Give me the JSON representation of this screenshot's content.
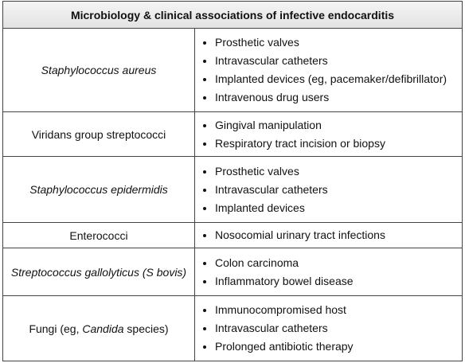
{
  "table": {
    "title": "Microbiology & clinical associations of infective endocarditis",
    "rows": [
      {
        "organism": [
          {
            "text": "Staphylococcus aureus",
            "italic": true
          }
        ],
        "associations": [
          "Prosthetic valves",
          "Intravascular catheters",
          "Implanted devices (eg, pacemaker/defibrillator)",
          "Intravenous drug users"
        ]
      },
      {
        "organism": [
          {
            "text": "Viridans group streptococci",
            "italic": false
          }
        ],
        "associations": [
          "Gingival manipulation",
          "Respiratory tract incision or biopsy"
        ]
      },
      {
        "organism": [
          {
            "text": "Staphylococcus epidermidis",
            "italic": true
          }
        ],
        "associations": [
          "Prosthetic valves",
          "Intravascular catheters",
          "Implanted devices"
        ]
      },
      {
        "organism": [
          {
            "text": "Enterococci",
            "italic": false
          }
        ],
        "associations": [
          "Nosocomial urinary tract infections"
        ]
      },
      {
        "organism": [
          {
            "text": "Streptococcus gallolyticus (S bovis)",
            "italic": true
          }
        ],
        "associations": [
          "Colon carcinoma",
          "Inflammatory bowel disease"
        ]
      },
      {
        "organism": [
          {
            "text": "Fungi (eg, ",
            "italic": false
          },
          {
            "text": "Candida",
            "italic": true
          },
          {
            "text": " species)",
            "italic": false
          }
        ],
        "associations": [
          "Immunocompromised host",
          "Intravascular catheters",
          "Prolonged antibiotic therapy"
        ]
      }
    ]
  }
}
